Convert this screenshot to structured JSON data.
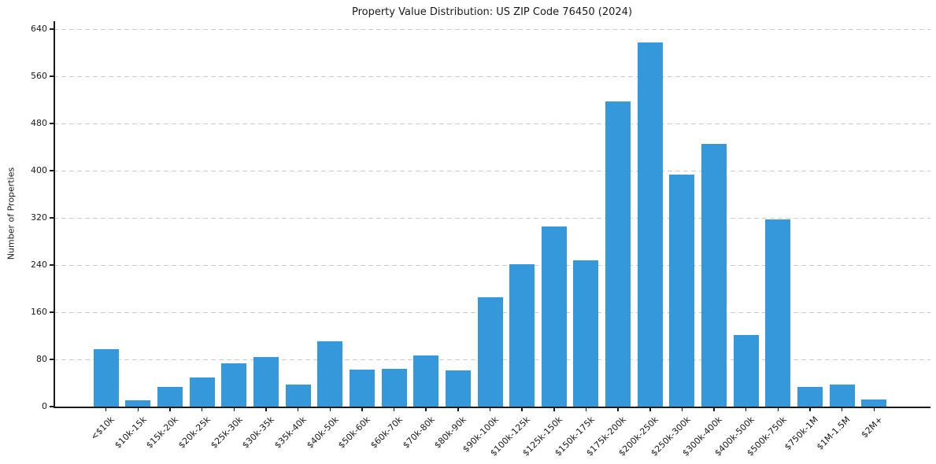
{
  "chart_data": {
    "type": "bar",
    "title": "Property Value Distribution: US ZIP Code 76450 (2024)",
    "xlabel": "",
    "ylabel": "Number of Properties",
    "categories": [
      "<$10k",
      "$10k-15k",
      "$15k-20k",
      "$20k-25k",
      "$25k-30k",
      "$30k-35k",
      "$35k-40k",
      "$40k-50k",
      "$50k-60k",
      "$60k-70k",
      "$70k-80k",
      "$80k-90k",
      "$90k-100k",
      "$100k-125k",
      "$125k-150k",
      "$150k-175k",
      "$175k-200k",
      "$200k-250k",
      "$250k-300k",
      "$300k-400k",
      "$400k-500k",
      "$500k-750k",
      "$750k-1M",
      "$1M-1.5M",
      "$2M+"
    ],
    "values": [
      97,
      11,
      34,
      50,
      73,
      84,
      37,
      111,
      63,
      64,
      87,
      62,
      185,
      242,
      305,
      248,
      517,
      618,
      393,
      445,
      121,
      318,
      34,
      37,
      12
    ],
    "yticks": [
      0,
      80,
      160,
      240,
      320,
      400,
      480,
      560,
      640
    ],
    "ylim": [
      0,
      653
    ],
    "grid": true,
    "legend": false,
    "bar_color": "#3498db",
    "grid_color": "#cbcbcb",
    "text_color": "#1a1a1a"
  }
}
